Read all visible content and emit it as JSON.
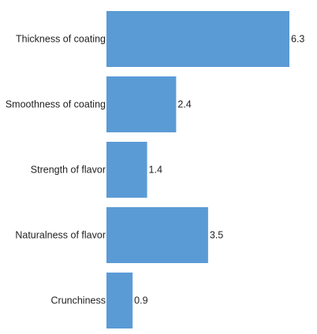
{
  "chart_data": {
    "type": "bar",
    "orientation": "horizontal",
    "categories": [
      "Thickness of coating",
      "Smoothness of coating",
      "Strength of flavor",
      "Naturalness of flavor",
      "Crunchiness"
    ],
    "values": [
      6.3,
      2.4,
      1.4,
      3.5,
      0.9
    ],
    "value_labels": [
      "6.3",
      "2.4",
      "1.4",
      "3.5",
      "0.9"
    ],
    "xlim": [
      0,
      6.3
    ],
    "grid": false,
    "legend": "none",
    "bar_color": "#5b9bd5",
    "text_color": "#222222"
  }
}
